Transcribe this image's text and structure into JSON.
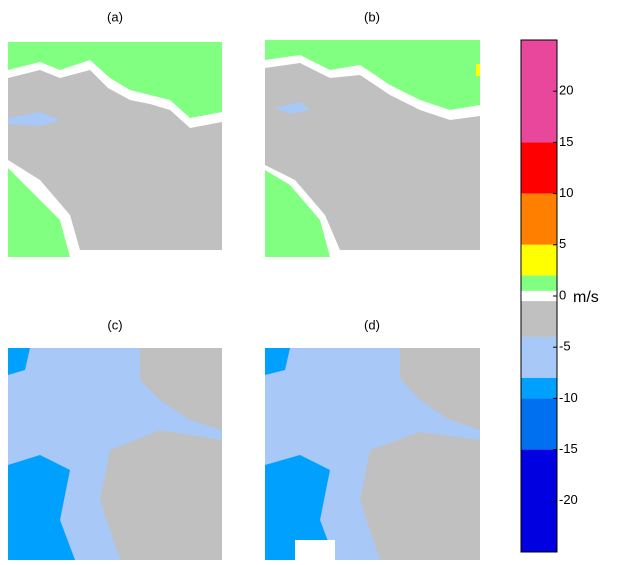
{
  "chart_data": {
    "type": "colorbar",
    "panels": [
      "(a)",
      "(b)",
      "(c)",
      "(d)"
    ],
    "unit_label": "m/s",
    "ylim": [
      -25,
      25
    ],
    "yticks": [
      -20,
      -15,
      -10,
      -5,
      0,
      5,
      10,
      15,
      20
    ],
    "bands": [
      {
        "from": 15,
        "to": 25,
        "color": "#e8479c"
      },
      {
        "from": 10,
        "to": 15,
        "color": "#ff0000"
      },
      {
        "from": 5,
        "to": 10,
        "color": "#ff8000"
      },
      {
        "from": 2,
        "to": 5,
        "color": "#ffff00"
      },
      {
        "from": 0.5,
        "to": 2,
        "color": "#80ff80"
      },
      {
        "from": -0.5,
        "to": 0.5,
        "color": "#ffffff"
      },
      {
        "from": -4,
        "to": -0.5,
        "color": "#c0c0c0"
      },
      {
        "from": -8,
        "to": -4,
        "color": "#a8c8f8"
      },
      {
        "from": -10,
        "to": -8,
        "color": "#00a0ff"
      },
      {
        "from": -15,
        "to": -10,
        "color": "#0070f0"
      },
      {
        "from": -25,
        "to": -15,
        "color": "#0000e0"
      }
    ]
  }
}
